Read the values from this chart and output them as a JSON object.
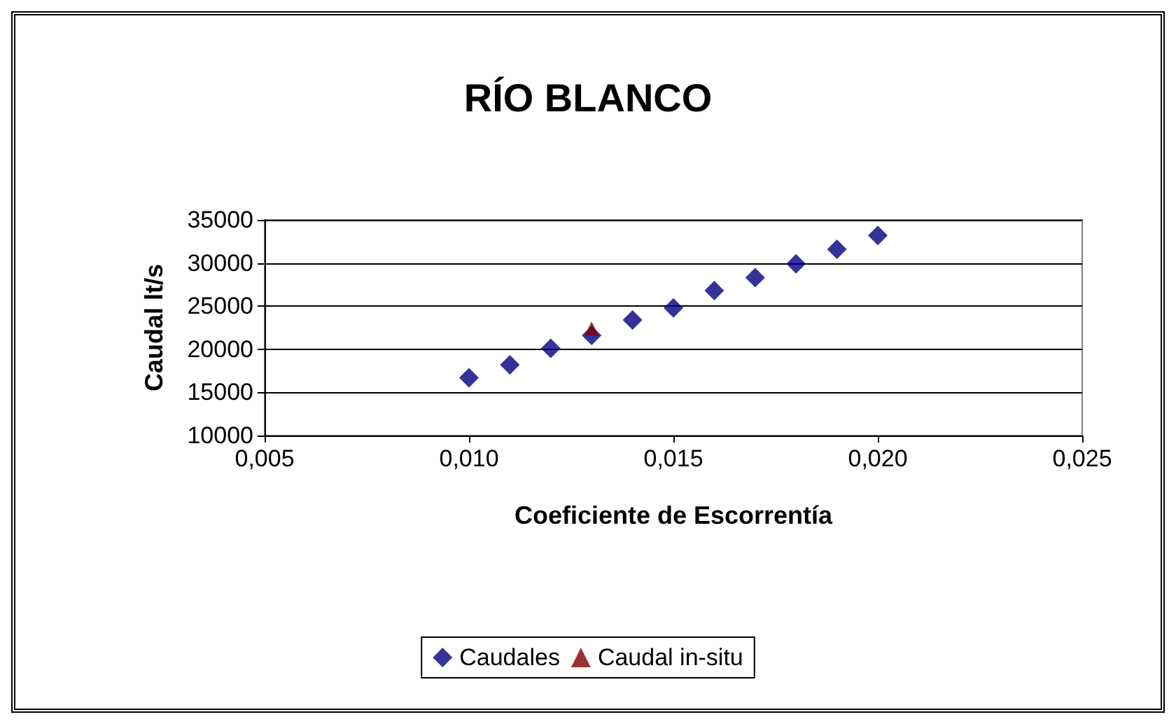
{
  "chart_data": {
    "type": "scatter",
    "title": "RÍO BLANCO",
    "xlabel": "Coeficiente de Escorrentía",
    "ylabel": "Caudal lt/s",
    "series": [
      {
        "name": "Caudales",
        "color": "#000080",
        "marker": "diamond",
        "x": [
          0.01,
          0.011,
          0.012,
          0.013,
          0.014,
          0.015,
          0.016,
          0.017,
          0.018,
          0.019,
          0.02
        ],
        "values": [
          16700,
          18200,
          20100,
          21600,
          23400,
          24800,
          26800,
          28300,
          29900,
          31600,
          33200
        ]
      },
      {
        "name": "Caudal in-situ",
        "color": "#800000",
        "marker": "triangle",
        "x": [
          0.013
        ],
        "values": [
          22400
        ]
      }
    ],
    "xlim": [
      0.005,
      0.025
    ],
    "xticks": [
      {
        "value": 0.005,
        "label": "0,005"
      },
      {
        "value": 0.01,
        "label": "0,010"
      },
      {
        "value": 0.015,
        "label": "0,015"
      },
      {
        "value": 0.02,
        "label": "0,020"
      },
      {
        "value": 0.025,
        "label": "0,025"
      }
    ],
    "ylim": [
      10000,
      35000
    ],
    "yticks": [
      10000,
      15000,
      20000,
      25000,
      30000,
      35000
    ],
    "grid": "y",
    "legend": "bottom"
  }
}
